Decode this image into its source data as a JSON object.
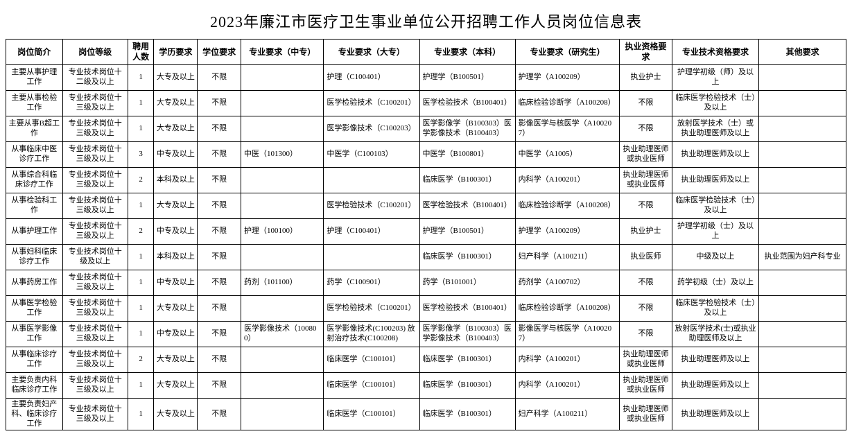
{
  "title": "2023年廉江市医疗卫生事业单位公开招聘工作人员岗位信息表",
  "columns": [
    "岗位简介",
    "岗位等级",
    "聘用人数",
    "学历要求",
    "学位要求",
    "专业要求（中专）",
    "专业要求（大专）",
    "专业要求（本科）",
    "专业要求（研究生）",
    "执业资格要求",
    "专业技术资格要求",
    "其他要求"
  ],
  "rows": [
    {
      "c": [
        "主要从事护理工作",
        "专业技术岗位十二级及以上",
        "1",
        "大专及以上",
        "不限",
        "",
        "护理（C100401）",
        "护理学（B100501）",
        "护理学（A100209）",
        "执业护士",
        "护理学初级（师）及以上",
        ""
      ]
    },
    {
      "c": [
        "主要从事检验工作",
        "专业技术岗位十三级及以上",
        "1",
        "大专及以上",
        "不限",
        "",
        "医学检验技术（C100201）",
        "医学检验技术（B100401）",
        "临床检验诊断学（A100208）",
        "不限",
        "临床医学检验技术（士）及以上",
        ""
      ]
    },
    {
      "c": [
        "主要从事B超工作",
        "专业技术岗位十三级及以上",
        "1",
        "大专及以上",
        "不限",
        "",
        "医学影像技术（C100203）",
        "医学影像学（B100303）医学影像技术（B100403）",
        "影像医学与核医学（A100207）",
        "不限",
        "放射医学技术（士）或执业助理医师及以上",
        ""
      ]
    },
    {
      "c": [
        "从事临床中医诊疗工作",
        "专业技术岗位十三级及以上",
        "3",
        "中专及以上",
        "不限",
        "中医（101300）",
        "中医学（C100103）",
        "中医学（B100801）",
        "中医学（A1005）",
        "执业助理医师或执业医师",
        "执业助理医师及以上",
        ""
      ]
    },
    {
      "c": [
        "从事综合科临床诊疗工作",
        "专业技术岗位十三级及以上",
        "2",
        "本科及以上",
        "不限",
        "",
        "",
        "临床医学（B100301）",
        "内科学（A100201）",
        "执业助理医师或执业医师",
        "执业助理医师及以上",
        ""
      ]
    },
    {
      "c": [
        "从事检验科工作",
        "专业技术岗位十三级及以上",
        "1",
        "大专及以上",
        "不限",
        "",
        "医学检验技术（C100201）",
        "医学检验技术（B100401）",
        "临床检验诊断学（A100208）",
        "不限",
        "临床医学检验技术（士）及以上",
        ""
      ]
    },
    {
      "c": [
        "从事护理工作",
        "专业技术岗位十三级及以上",
        "2",
        "中专及以上",
        "不限",
        "护理（100100）",
        "护理（C100401）",
        "护理学（B100501）",
        "护理学（A100209）",
        "执业护士",
        "护理学初级（士）及以上",
        ""
      ]
    },
    {
      "c": [
        "从事妇科临床诊疗工作",
        "专业技术岗位十级及以上",
        "1",
        "本科及以上",
        "不限",
        "",
        "",
        "临床医学（B100301）",
        "妇产科学（A100211）",
        "执业医师",
        "中级及以上",
        "执业范围为妇产科专业"
      ]
    },
    {
      "c": [
        "从事药房工作",
        "专业技术岗位十三级及以上",
        "1",
        "中专及以上",
        "不限",
        "药剂（101100）",
        "药学（C100901）",
        "药学（B101001）",
        "药剂学（A100702）",
        "不限",
        "药学初级（士）及以上",
        ""
      ]
    },
    {
      "c": [
        "从事医学检验工作",
        "专业技术岗位十三级及以上",
        "1",
        "大专及以上",
        "不限",
        "",
        "医学检验技术（C100201）",
        "医学检验技术（B100401）",
        "临床检验诊断学（A100208）",
        "不限",
        "临床医学检验技术（士）及以上",
        ""
      ]
    },
    {
      "c": [
        "从事医学影像工作",
        "专业技术岗位十三级及以上",
        "1",
        "中专及以上",
        "不限",
        "医学影像技术（100800）",
        "医学影像技术(C100203) 放射治疗技术(C100208)",
        "医学影像学（B100303）医学影像技术（B100403）",
        "影像医学与核医学（A100207）",
        "不限",
        "放射医学技术(士)或执业助理医师及以上",
        ""
      ]
    },
    {
      "c": [
        "从事临床诊疗工作",
        "专业技术岗位十三级及以上",
        "2",
        "大专及以上",
        "不限",
        "",
        "临床医学（C100101）",
        "临床医学（B100301）",
        "内科学（A100201）",
        "执业助理医师或执业医师",
        "执业助理医师及以上",
        ""
      ]
    },
    {
      "c": [
        "主要负责内科临床诊疗工作",
        "专业技术岗位十三级及以上",
        "1",
        "大专及以上",
        "不限",
        "",
        "临床医学（C100101）",
        "临床医学（B100301）",
        "内科学（A100201）",
        "执业助理医师或执业医师",
        "执业助理医师及以上",
        ""
      ]
    },
    {
      "c": [
        "主要负责妇产科、临床诊疗工作",
        "专业技术岗位十三级及以上",
        "1",
        "大专及以上",
        "不限",
        "",
        "临床医学（C100101）",
        "临床医学（B100301）",
        "妇产科学（A100211）",
        "执业助理医师或执业医师",
        "执业助理医师及以上",
        ""
      ]
    }
  ]
}
